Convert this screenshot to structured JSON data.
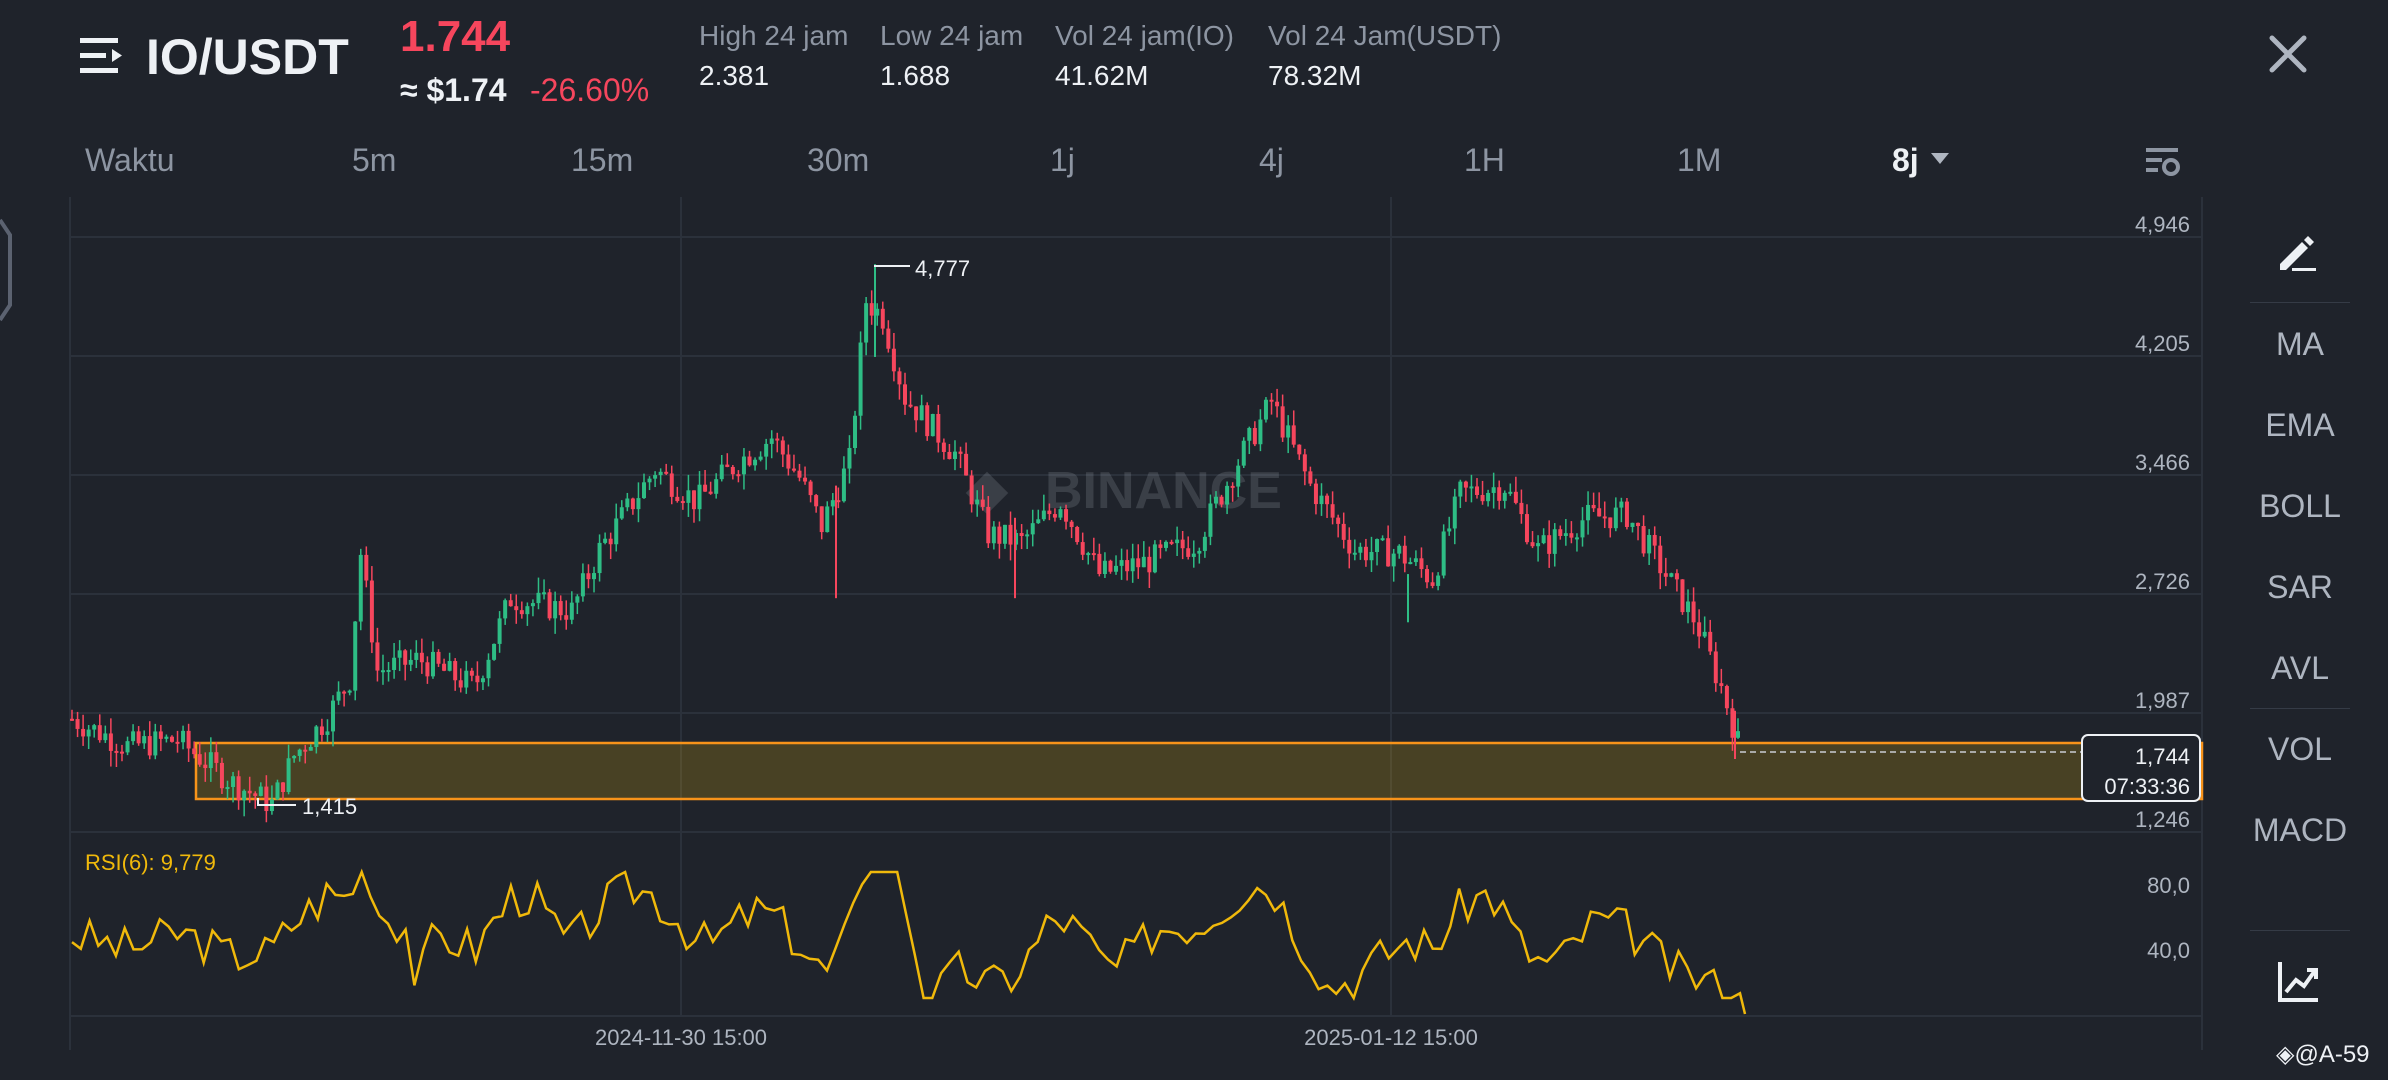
{
  "header": {
    "pair": "IO/USDT",
    "price": "1.744",
    "price_usd": "≈ $1.74",
    "change": "-26.60%",
    "stats": [
      {
        "label": "High 24 jam",
        "value": "2.381"
      },
      {
        "label": "Low 24 jam",
        "value": "1.688"
      },
      {
        "label": "Vol 24 jam(IO)",
        "value": "41.62M"
      },
      {
        "label": "Vol 24 Jam(USDT)",
        "value": "78.32M"
      }
    ]
  },
  "timeframes": [
    "Waktu",
    "5m",
    "15m",
    "30m",
    "1j",
    "4j",
    "1H",
    "1M",
    "8j"
  ],
  "active_timeframe": "8j",
  "sidebar": [
    "MA",
    "EMA",
    "BOLL",
    "SAR",
    "AVL",
    "VOL",
    "MACD"
  ],
  "chart": {
    "watermark": "BINANCE",
    "price_ticks": [
      "4,946",
      "4,205",
      "3,466",
      "2,726",
      "1,987",
      "1,246"
    ],
    "high_label": "4,777",
    "low_label": "1,415",
    "current_price": "1,744",
    "countdown": "07:33:36",
    "rsi_label": "RSI(6): 9,779",
    "rsi_ticks": [
      "80,0",
      "40,0"
    ],
    "date_labels": [
      "2024-11-30 15:00",
      "2025-01-12 15:00"
    ],
    "zone": {
      "from": 1.415,
      "to": 1.79,
      "color": "#f0b90b"
    },
    "colors": {
      "up": "#2ebd85",
      "down": "#f6465d",
      "rsi": "#f0b90b",
      "zone_border": "#f7931a"
    }
  },
  "footer": {
    "user": "@A-59"
  }
}
